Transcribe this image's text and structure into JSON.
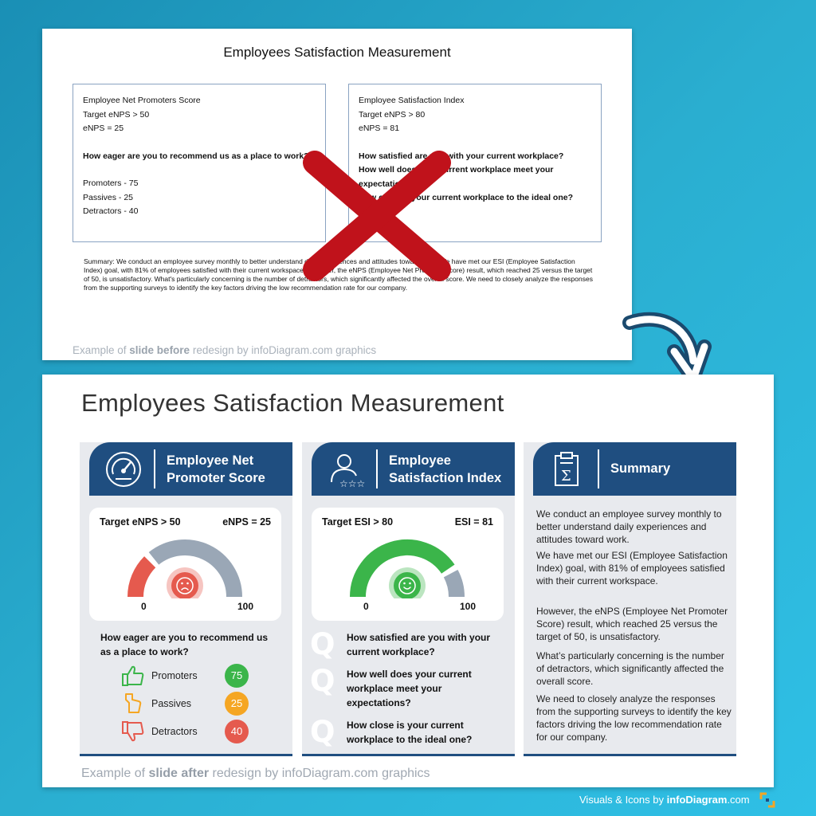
{
  "before": {
    "title": "Employees Satisfaction Measurement",
    "box1": {
      "line1": "Employee Net Promoters Score",
      "line2": "Target eNPS > 50",
      "line3": "eNPS = 25",
      "question": "How eager are you to recommend us as a place to work?",
      "promoters": "Promoters - 75",
      "passives": "Passives - 25",
      "detractors": "Detractors - 40"
    },
    "box2": {
      "line1": "Employee Satisfaction Index",
      "line2": "Target eNPS > 80",
      "line3": "eNPS = 81",
      "q1": "How satisfied are you with your current workplace?",
      "q2": "How well does your current workplace meet your expectations?",
      "q3": "How close is your current workplace to the ideal one?"
    },
    "summary": "Summary: We conduct an employee survey monthly to better understand daily experiences and attitudes toward work. We have met our ESI (Employee Satisfaction Index) goal, with 81% of employees satisfied with their current workspace. However, the eNPS (Employee Net Promoter Score) result, which reached 25 versus the target of 50, is unsatisfactory. What's particularly concerning is the number of detractors, which significantly affected the overall score. We need to closely analyze the responses from the supporting surveys to identify the key factors driving the low recommendation rate for our company.",
    "caption_pre": "Example of ",
    "caption_bold": "slide before",
    "caption_post": " redesign by infoDiagram.com graphics"
  },
  "after": {
    "title": "Employees Satisfaction Measurement",
    "enps": {
      "header": "Employee Net\nPromoter Score",
      "icon": "gauge-icon",
      "target": "Target eNPS > 50",
      "current": "eNPS = 25",
      "value": 25,
      "gauge_min": "0",
      "gauge_max": "100",
      "question": "How eager are you to recommend us as a place to work?",
      "items": [
        {
          "label": "Promoters",
          "value": "75",
          "icon": "thumbs-up-icon",
          "color": "#3bb54a"
        },
        {
          "label": "Passives",
          "value": "25",
          "icon": "thumbs-sideways-icon",
          "color": "#f5a623"
        },
        {
          "label": "Detractors",
          "value": "40",
          "icon": "thumbs-down-icon",
          "color": "#e55a4e"
        }
      ]
    },
    "esi": {
      "header": "Employee\nSatisfaction Index",
      "icon": "employee-rating-icon",
      "target": "Target ESI > 80",
      "current": "ESI = 81",
      "value": 81,
      "gauge_min": "0",
      "gauge_max": "100",
      "questions": [
        "How satisfied are you with your current workplace?",
        "How well does your current workplace meet your expectations?",
        "How close is your current workplace to the ideal one?"
      ]
    },
    "summary": {
      "header": "Summary",
      "icon": "clipboard-sum-icon",
      "paragraphs": [
        "We conduct an employee survey monthly to better understand daily experiences and attitudes toward work.",
        "We have met our ESI (Employee Satisfaction Index) goal, with 81% of employees satisfied with their current workspace.",
        "However, the eNPS (Employee Net Promoter Score) result, which reached 25 versus the target of 50, is unsatisfactory.",
        "What’s particularly concerning is the number of detractors, which significantly affected the overall score.",
        "We need to closely analyze the responses from the supporting surveys to identify the key factors driving the low recommendation rate for our company."
      ]
    },
    "caption_pre": "Example of ",
    "caption_bold": "slide after",
    "caption_post": " redesign by infoDiagram.com graphics"
  },
  "credit_pre": "Visuals & Icons by ",
  "credit_bold": "infoDiagram",
  "credit_post": ".com",
  "colors": {
    "navy": "#1f4e80",
    "green": "#3bb54a",
    "orange": "#f5a623",
    "red": "#e55a4e",
    "gauge_gray": "#9aa7b6",
    "cross": "#c0121b"
  }
}
